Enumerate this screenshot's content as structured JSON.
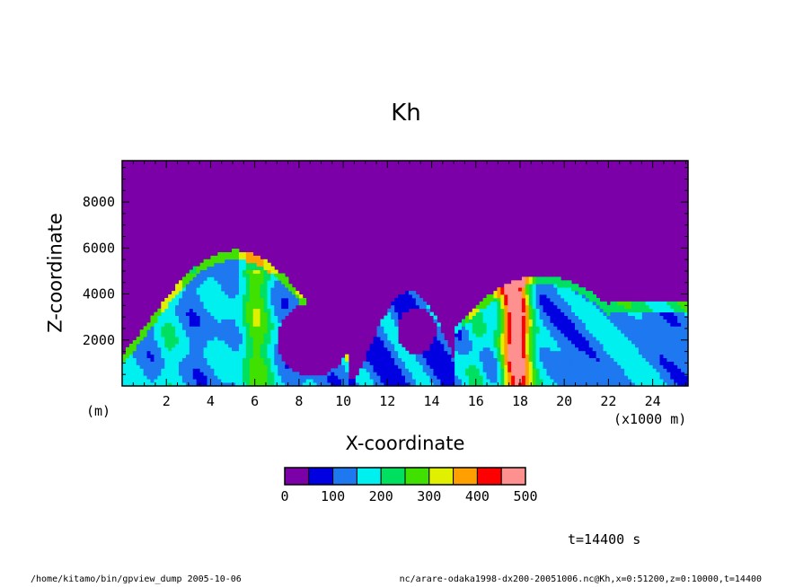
{
  "chart_data": {
    "type": "heatmap",
    "title": "Kh",
    "xlabel": "X-coordinate",
    "ylabel": "Z-coordinate",
    "x_unit": "(x1000 m)",
    "y_unit": "(m)",
    "xlim": [
      0,
      25.6
    ],
    "ylim": [
      0,
      9800
    ],
    "x_ticks": [
      2,
      4,
      6,
      8,
      10,
      12,
      14,
      16,
      18,
      20,
      22,
      24
    ],
    "y_ticks": [
      2000,
      4000,
      6000,
      8000
    ],
    "color_levels": [
      0,
      50,
      100,
      150,
      200,
      250,
      300,
      350,
      400,
      450,
      500
    ],
    "colorbar_labels": [
      "0",
      "100",
      "200",
      "300",
      "400",
      "500"
    ],
    "colors": [
      "#7b00a8",
      "#0000e0",
      "#1e78f0",
      "#00f0f0",
      "#00e060",
      "#40e000",
      "#e0f000",
      "#ffa000",
      "#ff0000",
      "#ff9090"
    ],
    "cloud_regions": [
      {
        "x": [
          0,
          10
        ],
        "z_top": 5900
      },
      {
        "x": [
          10.8,
          15.2
        ],
        "z_top": 4100
      },
      {
        "x": [
          15.2,
          25.6
        ],
        "z_top": 4800
      }
    ],
    "max_value_location": {
      "x": 18,
      "z": 500
    }
  },
  "annotations": {
    "time": "t=14400 s"
  },
  "footer": {
    "left": "/home/kitamo/bin/gpview_dump  2005-10-06",
    "right": "nc/arare-odaka1998-dx200-20051006.nc@Kh,x=0:51200,z=0:10000,t=14400"
  }
}
